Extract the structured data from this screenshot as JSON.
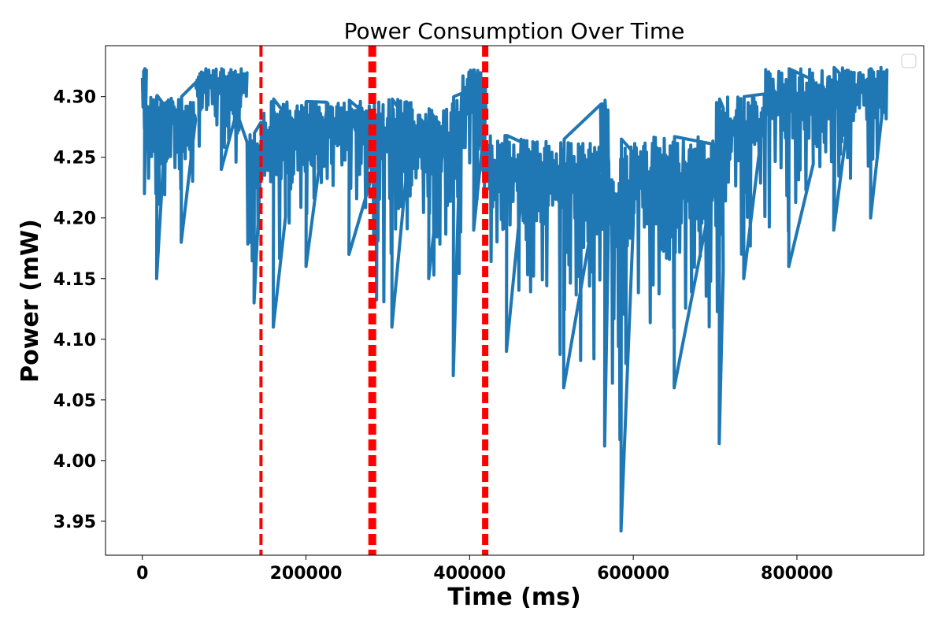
{
  "chart_data": {
    "type": "line",
    "title": "Power Consumption Over Time",
    "xlabel": "Time (ms)",
    "ylabel": "Power (mW)",
    "xlim": [
      -45000,
      955000
    ],
    "ylim": [
      3.922,
      4.342
    ],
    "xticks": [
      0,
      200000,
      400000,
      600000,
      800000
    ],
    "yticks": [
      3.95,
      4.0,
      4.05,
      4.1,
      4.15,
      4.2,
      4.25,
      4.3
    ],
    "grid": false,
    "legend": "top-right",
    "series": [
      {
        "color": "#1f77b4",
        "segments": [
          {
            "x0": 0,
            "x1": 5000,
            "top": 4.323,
            "bottom": 4.22
          },
          {
            "x0": 5000,
            "x1": 30000,
            "top": 4.301,
            "bottom": 4.15
          },
          {
            "x0": 30000,
            "x1": 65000,
            "top": 4.3,
            "bottom": 4.18
          },
          {
            "x0": 65000,
            "x1": 128000,
            "top": 4.323,
            "bottom": 4.24
          },
          {
            "x0": 128000,
            "x1": 145000,
            "top": 4.27,
            "bottom": 4.13
          },
          {
            "x0": 145000,
            "x1": 175000,
            "top": 4.298,
            "bottom": 4.11
          },
          {
            "x0": 175000,
            "x1": 225000,
            "top": 4.296,
            "bottom": 4.16
          },
          {
            "x0": 225000,
            "x1": 280000,
            "top": 4.297,
            "bottom": 4.17
          },
          {
            "x0": 280000,
            "x1": 330000,
            "top": 4.298,
            "bottom": 4.11
          },
          {
            "x0": 330000,
            "x1": 370000,
            "top": 4.29,
            "bottom": 4.15
          },
          {
            "x0": 370000,
            "x1": 390000,
            "top": 4.3,
            "bottom": 4.07
          },
          {
            "x0": 390000,
            "x1": 420000,
            "top": 4.322,
            "bottom": 4.19
          },
          {
            "x0": 420000,
            "x1": 470000,
            "top": 4.268,
            "bottom": 4.09
          },
          {
            "x0": 470000,
            "x1": 560000,
            "top": 4.265,
            "bottom": 4.06
          },
          {
            "x0": 560000,
            "x1": 570000,
            "top": 4.297,
            "bottom": 4.012
          },
          {
            "x0": 570000,
            "x1": 600000,
            "top": 4.265,
            "bottom": 3.942
          },
          {
            "x0": 600000,
            "x1": 700000,
            "top": 4.267,
            "bottom": 4.06
          },
          {
            "x0": 700000,
            "x1": 710000,
            "top": 4.298,
            "bottom": 4.014
          },
          {
            "x0": 710000,
            "x1": 760000,
            "top": 4.3,
            "bottom": 4.15
          },
          {
            "x0": 760000,
            "x1": 820000,
            "top": 4.323,
            "bottom": 4.16
          },
          {
            "x0": 820000,
            "x1": 870000,
            "top": 4.324,
            "bottom": 4.19
          },
          {
            "x0": 870000,
            "x1": 910000,
            "top": 4.324,
            "bottom": 4.2
          }
        ]
      }
    ],
    "vlines": [
      {
        "x": 145000,
        "color": "#ff0000",
        "style": "dashed",
        "width": 4
      },
      {
        "x": 281000,
        "color": "#ff0000",
        "style": "dashed",
        "width": 10
      },
      {
        "x": 419000,
        "color": "#ff0000",
        "style": "dashed",
        "width": 8
      }
    ]
  }
}
